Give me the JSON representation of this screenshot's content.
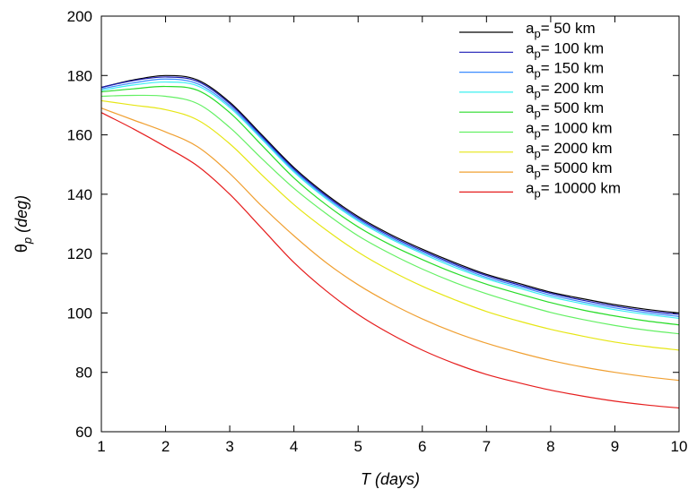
{
  "chart_data": {
    "type": "line",
    "xlabel": "T (days)",
    "ylabel_main": "θ",
    "ylabel_sub": "p",
    "ylabel_rest": " (deg)",
    "xlim": [
      1,
      10
    ],
    "ylim": [
      60,
      200
    ],
    "xticks": [
      1,
      2,
      3,
      4,
      5,
      6,
      7,
      8,
      9,
      10
    ],
    "yticks": [
      60,
      80,
      100,
      120,
      140,
      160,
      180,
      200
    ],
    "grid": false,
    "legend_position": "top-right",
    "x": [
      1,
      1.5,
      2,
      2.5,
      3,
      3.5,
      4,
      4.5,
      5,
      5.5,
      6,
      6.5,
      7,
      7.5,
      8,
      8.5,
      9,
      9.5,
      10
    ],
    "series": [
      {
        "name": "50 km",
        "label_main": "a",
        "label_sub": "p",
        "label_rest": "= 50 km",
        "color": "#000000",
        "values": [
          176.0,
          178.5,
          180.0,
          178.5,
          171.0,
          160.0,
          149.0,
          140.0,
          132.5,
          126.5,
          121.5,
          117.0,
          113.0,
          110.0,
          107.0,
          104.8,
          102.8,
          101.2,
          100.0
        ]
      },
      {
        "name": "100 km",
        "label_main": "a",
        "label_sub": "p",
        "label_rest": "= 100 km",
        "color": "#1a1ab4",
        "values": [
          176.0,
          178.3,
          179.5,
          178.0,
          170.5,
          159.5,
          148.5,
          139.5,
          132.0,
          126.0,
          121.0,
          116.5,
          112.6,
          109.5,
          106.6,
          104.3,
          102.3,
          100.7,
          99.5
        ]
      },
      {
        "name": "150 km",
        "label_main": "a",
        "label_sub": "p",
        "label_rest": "= 150 km",
        "color": "#3c8cff",
        "values": [
          175.5,
          177.5,
          178.8,
          177.2,
          169.8,
          159.0,
          148.0,
          139.0,
          131.5,
          125.5,
          120.5,
          116.0,
          112.0,
          109.0,
          106.0,
          103.7,
          101.7,
          100.1,
          98.8
        ]
      },
      {
        "name": "200 km",
        "label_main": "a",
        "label_sub": "p",
        "label_rest": "= 200 km",
        "color": "#3cf0f0",
        "values": [
          175.0,
          176.8,
          177.8,
          176.5,
          169.2,
          158.5,
          147.5,
          138.5,
          131.0,
          125.0,
          120.0,
          115.4,
          111.5,
          108.4,
          105.4,
          103.1,
          101.1,
          99.5,
          98.2
        ]
      },
      {
        "name": "500 km",
        "label_main": "a",
        "label_sub": "p",
        "label_rest": "= 500 km",
        "color": "#28dc28",
        "values": [
          174.5,
          175.5,
          176.3,
          175.0,
          167.5,
          156.5,
          145.5,
          136.5,
          129.0,
          123.0,
          118.0,
          113.5,
          109.7,
          106.5,
          103.5,
          101.0,
          99.0,
          97.3,
          96.0
        ]
      },
      {
        "name": "1000 km",
        "label_main": "a",
        "label_sub": "p",
        "label_rest": "= 1000 km",
        "color": "#64f064",
        "values": [
          173.0,
          173.3,
          173.0,
          170.5,
          162.5,
          152.0,
          142.0,
          133.5,
          126.0,
          120.0,
          114.8,
          110.3,
          106.5,
          103.2,
          100.2,
          97.8,
          95.8,
          94.2,
          93.0
        ]
      },
      {
        "name": "2000 km",
        "label_main": "a",
        "label_sub": "p",
        "label_rest": "= 2000 km",
        "color": "#e6e614",
        "values": [
          171.5,
          170.0,
          168.5,
          165.0,
          157.0,
          146.5,
          136.5,
          128.0,
          120.5,
          114.3,
          109.0,
          104.5,
          100.5,
          97.3,
          94.5,
          92.2,
          90.2,
          88.7,
          87.5
        ]
      },
      {
        "name": "5000 km",
        "label_main": "a",
        "label_sub": "p",
        "label_rest": "= 5000 km",
        "color": "#f0a032",
        "values": [
          169.0,
          165.0,
          161.0,
          156.0,
          147.0,
          136.0,
          126.0,
          117.0,
          109.5,
          103.3,
          98.0,
          93.5,
          89.8,
          86.7,
          84.0,
          81.8,
          80.0,
          78.5,
          77.3
        ]
      },
      {
        "name": "10000 km",
        "label_main": "a",
        "label_sub": "p",
        "label_rest": "= 10000 km",
        "color": "#e61e1e",
        "values": [
          167.5,
          162.0,
          156.0,
          149.5,
          140.0,
          128.5,
          117.0,
          107.5,
          99.5,
          93.0,
          87.5,
          83.0,
          79.3,
          76.5,
          74.0,
          72.0,
          70.3,
          69.0,
          68.0
        ]
      }
    ]
  }
}
